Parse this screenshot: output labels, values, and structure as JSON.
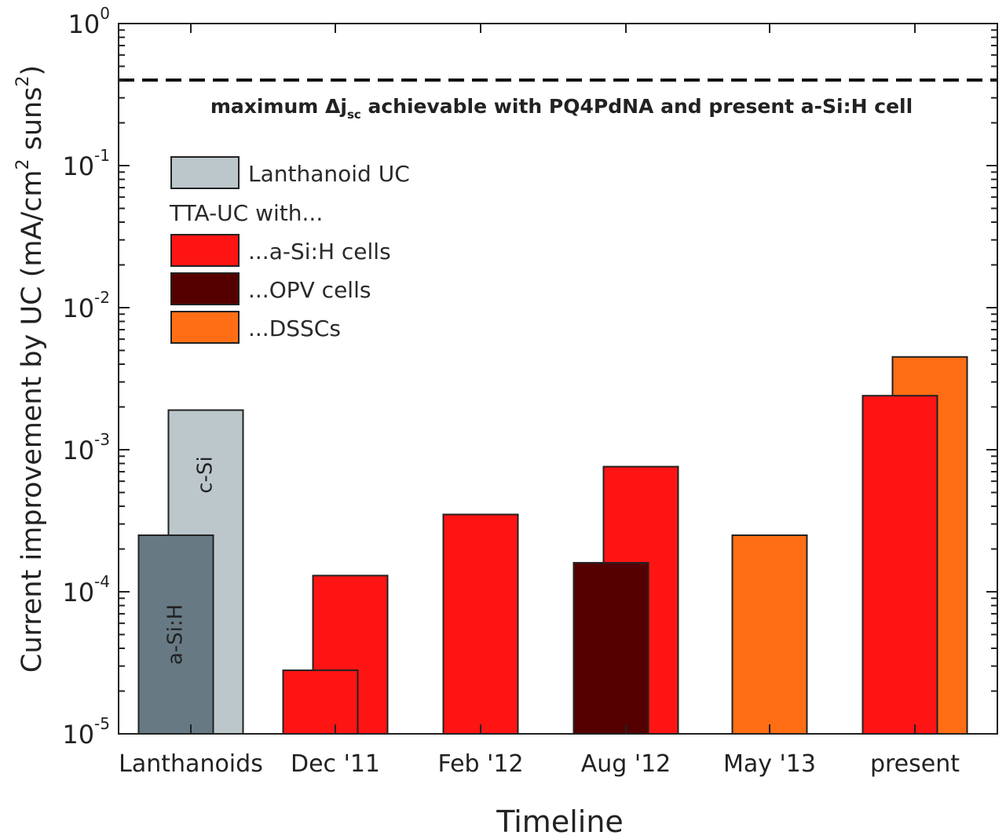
{
  "chart_data": {
    "type": "bar",
    "yscale": "log",
    "ylim": [
      1e-05,
      1
    ],
    "ytick_values": [
      1e-05,
      0.0001,
      0.001,
      0.01,
      0.1,
      1
    ],
    "ytick_labels": [
      {
        "base": "10",
        "exp": "-5"
      },
      {
        "base": "10",
        "exp": "-4"
      },
      {
        "base": "10",
        "exp": "-3"
      },
      {
        "base": "10",
        "exp": "-2"
      },
      {
        "base": "10",
        "exp": "-1"
      },
      {
        "base": "10",
        "exp": "0"
      }
    ],
    "categories": [
      "Lanthanoids",
      "Dec '11",
      "Feb '12",
      "Aug '12",
      "May '13",
      "present"
    ],
    "xlabel": "Timeline",
    "ylabel": {
      "prefix": "Current improvement by UC (mA/cm",
      "sup1": "2",
      "middle": " suns",
      "sup2": "2",
      "suffix": ")"
    },
    "grid": false,
    "bars": [
      {
        "category": "Lanthanoids",
        "series": "Lanthanoid UC",
        "shade": "light",
        "value": 0.0019,
        "label": "c-Si",
        "offset": "right",
        "order": 0
      },
      {
        "category": "Lanthanoids",
        "series": "Lanthanoid UC",
        "shade": "dark",
        "value": 0.00025,
        "label": "a-Si:H",
        "offset": "left",
        "order": 1
      },
      {
        "category": "Dec '11",
        "series": "a-Si:H cells",
        "value": 0.00013,
        "offset": "right",
        "order": 0
      },
      {
        "category": "Dec '11",
        "series": "a-Si:H cells",
        "value": 2.8e-05,
        "offset": "left",
        "order": 1
      },
      {
        "category": "Feb '12",
        "series": "a-Si:H cells",
        "value": 0.00035,
        "offset": "center",
        "order": 0
      },
      {
        "category": "Aug '12",
        "series": "a-Si:H cells",
        "value": 0.00076,
        "offset": "right",
        "order": 0
      },
      {
        "category": "Aug '12",
        "series": "OPV cells",
        "value": 0.00016,
        "offset": "left",
        "order": 1
      },
      {
        "category": "May '13",
        "series": "DSSCs",
        "value": 0.00025,
        "offset": "center",
        "order": 0
      },
      {
        "category": "present",
        "series": "DSSCs",
        "value": 0.0045,
        "offset": "right",
        "order": 0
      },
      {
        "category": "present",
        "series": "a-Si:H cells",
        "value": 0.0024,
        "offset": "left",
        "order": 1
      }
    ],
    "reference_line": {
      "value": 0.4,
      "style": "dashed",
      "label": {
        "prefix": "maximum Δj",
        "sub": "sc",
        "suffix": " achievable with PQ4PdNA and present a-Si:H cell"
      }
    },
    "legend": {
      "placement": "top-left",
      "items": [
        {
          "type": "swatch",
          "name": "Lanthanoid UC",
          "color": "#bcc7cc"
        },
        {
          "type": "heading",
          "name": "TTA-UC with..."
        },
        {
          "type": "swatch",
          "name": "...a-Si:H cells",
          "color": "#ff1414"
        },
        {
          "type": "swatch",
          "name": "...OPV cells",
          "color": "#550000"
        },
        {
          "type": "swatch",
          "name": "...DSSCs",
          "color": "#ff6e14"
        }
      ]
    },
    "colors": {
      "Lanthanoid UC light": "#bcc7cc",
      "Lanthanoid UC dark": "#677a84",
      "a-Si:H cells": "#ff1414",
      "OPV cells": "#550000",
      "DSSCs": "#ff6e14"
    }
  }
}
